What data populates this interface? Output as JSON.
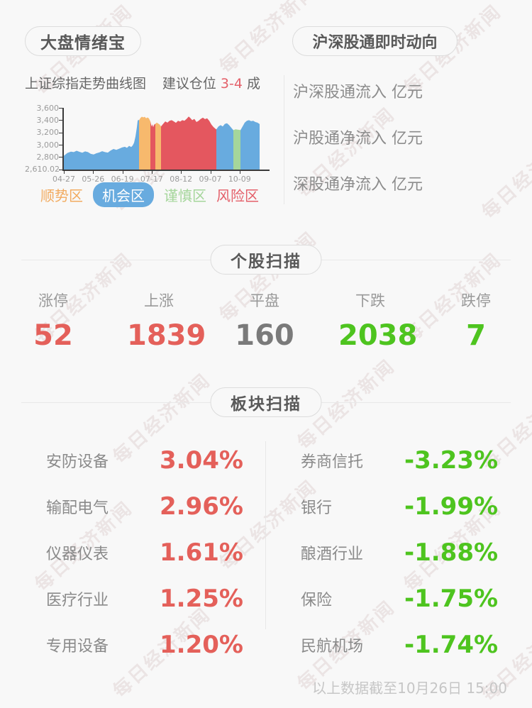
{
  "watermark": {
    "text": "每日经济新闻"
  },
  "header_left": {
    "title": "大盘情绪宝"
  },
  "header_right": {
    "title": "沪深股通即时动向",
    "rows": [
      "沪深股通流入 亿元",
      "沪股通净流入 亿元",
      "深股通净流入 亿元"
    ]
  },
  "chart_header": {
    "title": "上证综指走势曲线图",
    "advice_prefix": "建议仓位 ",
    "advice_value": "3-4",
    "advice_suffix": " 成"
  },
  "chart_data": {
    "type": "area",
    "title": "上证综指走势曲线图",
    "y_axis": {
      "min": 2610.02,
      "max": 3600,
      "tick_labels": [
        "3,600",
        "3,400",
        "3,200",
        "3,000",
        "2,800",
        "2,610.02"
      ]
    },
    "x_axis": {
      "tick_labels": [
        "04-27",
        "05-26",
        "06-19",
        "07-17",
        "08-12",
        "09-07",
        "10-09"
      ]
    },
    "legend": [
      {
        "label": "顺势区",
        "color": "#f2ab60",
        "style": "text"
      },
      {
        "label": "机会区",
        "color": "#68abdf",
        "style": "pill"
      },
      {
        "label": "谨慎区",
        "color": "#a5d69b",
        "style": "text"
      },
      {
        "label": "风险区",
        "color": "#e4606a",
        "style": "text"
      }
    ],
    "segments": [
      {
        "zone": "机会区",
        "color": "#68abdf",
        "points": [
          [
            0,
            2830
          ],
          [
            5,
            2876
          ],
          [
            10,
            2898
          ],
          [
            14,
            2890
          ],
          [
            18,
            2912
          ],
          [
            22,
            2895
          ],
          [
            26,
            2880
          ],
          [
            30,
            2902
          ],
          [
            34,
            2890
          ],
          [
            38,
            2862
          ],
          [
            42,
            2852
          ],
          [
            46,
            2872
          ],
          [
            50,
            2885
          ],
          [
            54,
            2905
          ],
          [
            58,
            2890
          ],
          [
            62,
            2882
          ],
          [
            66,
            2916
          ],
          [
            70,
            2940
          ],
          [
            74,
            2926
          ],
          [
            78,
            2944
          ],
          [
            82,
            2964
          ],
          [
            86,
            2975
          ],
          [
            89,
            2958
          ],
          [
            92,
            2990
          ],
          [
            95,
            2972
          ],
          [
            97,
            2995
          ],
          [
            99,
            3040
          ],
          [
            101,
            3140
          ],
          [
            103,
            3290
          ],
          [
            104,
            3390
          ],
          [
            105,
            3410
          ],
          [
            106,
            3400
          ]
        ]
      },
      {
        "zone": "顺势区",
        "color": "#f7b96d",
        "points": [
          [
            106,
            3400
          ],
          [
            108,
            3438
          ],
          [
            110,
            3458
          ],
          [
            112,
            3446
          ],
          [
            114,
            3456
          ],
          [
            116,
            3432
          ],
          [
            118,
            3446
          ],
          [
            120,
            3430
          ],
          [
            122,
            3382
          ]
        ]
      },
      {
        "zone": "风险区",
        "color": "#e4575f",
        "points": [
          [
            122,
            3382
          ],
          [
            123,
            3330
          ],
          [
            124,
            3300
          ],
          [
            125,
            3338
          ],
          [
            126,
            3290
          ],
          [
            127,
            3320
          ],
          [
            128,
            3338
          ],
          [
            129,
            3342
          ]
        ]
      },
      {
        "zone": "顺势区",
        "color": "#f7b96d",
        "points": [
          [
            129,
            3342
          ],
          [
            131,
            3362
          ],
          [
            133,
            3348
          ],
          [
            135,
            3332
          ],
          [
            137,
            3302
          ]
        ]
      },
      {
        "zone": "风险区",
        "color": "#e4575f",
        "points": [
          [
            137,
            3302
          ],
          [
            140,
            3342
          ],
          [
            143,
            3382
          ],
          [
            146,
            3362
          ],
          [
            149,
            3392
          ],
          [
            152,
            3402
          ],
          [
            155,
            3382
          ],
          [
            158,
            3360
          ],
          [
            161,
            3392
          ],
          [
            164,
            3380
          ],
          [
            167,
            3402
          ],
          [
            170,
            3392
          ],
          [
            173,
            3422
          ],
          [
            176,
            3460
          ],
          [
            178,
            3440
          ],
          [
            181,
            3402
          ],
          [
            184,
            3422
          ],
          [
            187,
            3372
          ],
          [
            190,
            3392
          ],
          [
            193,
            3422
          ],
          [
            196,
            3442
          ],
          [
            199,
            3420
          ],
          [
            202,
            3432
          ],
          [
            205,
            3392
          ],
          [
            208,
            3332
          ],
          [
            211,
            3292
          ],
          [
            214,
            3262
          ],
          [
            215,
            3255
          ]
        ]
      },
      {
        "zone": "机会区",
        "color": "#68abdf",
        "points": [
          [
            215,
            3255
          ],
          [
            218,
            3302
          ],
          [
            221,
            3322
          ],
          [
            224,
            3302
          ],
          [
            227,
            3342
          ],
          [
            230,
            3352
          ],
          [
            233,
            3322
          ],
          [
            236,
            3282
          ],
          [
            239,
            3242
          ]
        ]
      },
      {
        "zone": "谨慎区",
        "color": "#a5d69b",
        "points": [
          [
            239,
            3242
          ],
          [
            242,
            3256
          ],
          [
            245,
            3250
          ],
          [
            248,
            3246
          ],
          [
            249,
            3242
          ]
        ]
      },
      {
        "zone": "机会区",
        "color": "#68abdf",
        "points": [
          [
            249,
            3242
          ],
          [
            252,
            3302
          ],
          [
            255,
            3362
          ],
          [
            258,
            3392
          ],
          [
            261,
            3402
          ],
          [
            264,
            3386
          ],
          [
            267,
            3392
          ],
          [
            270,
            3372
          ],
          [
            273,
            3362
          ],
          [
            276,
            3340
          ]
        ]
      }
    ]
  },
  "stock_scan": {
    "title": "个股扫描",
    "stats": [
      {
        "label": "涨停",
        "value": "52",
        "color": "#e4605a"
      },
      {
        "label": "上涨",
        "value": "1839",
        "color": "#e4605a"
      },
      {
        "label": "平盘",
        "value": "160",
        "color": "#7a7a7a"
      },
      {
        "label": "下跌",
        "value": "2038",
        "color": "#4ec41f"
      },
      {
        "label": "跌停",
        "value": "7",
        "color": "#4ec41f"
      }
    ]
  },
  "sector_scan": {
    "title": "板块扫描",
    "up_color": "#e4605a",
    "down_color": "#4ec41f",
    "up": [
      {
        "name": "安防设备",
        "value": "3.04%"
      },
      {
        "name": "输配电气",
        "value": "2.96%"
      },
      {
        "name": "仪器仪表",
        "value": "1.61%"
      },
      {
        "name": "医疗行业",
        "value": "1.25%"
      },
      {
        "name": "专用设备",
        "value": "1.20%"
      }
    ],
    "down": [
      {
        "name": "券商信托",
        "value": "-3.23%"
      },
      {
        "name": "银行",
        "value": "-1.99%"
      },
      {
        "name": "酿酒行业",
        "value": "-1.88%"
      },
      {
        "name": "保险",
        "value": "-1.75%"
      },
      {
        "name": "民航机场",
        "value": "-1.74%"
      }
    ]
  },
  "footer": {
    "note": "以上数据截至10月26日 15:00"
  }
}
